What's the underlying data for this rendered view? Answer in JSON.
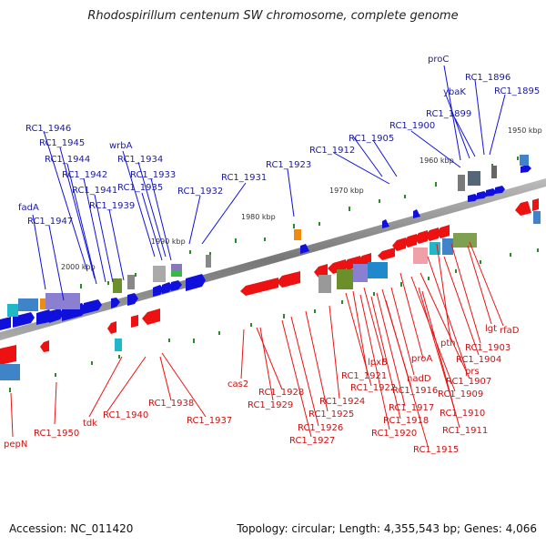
{
  "title": "Rhodospirillum centenum SW chromosome, complete genome",
  "footer": {
    "accession": "Accession: NC_011420",
    "summary": "Topology: circular; Length: 4,355,543 bp; Genes: 4,066"
  },
  "colors": {
    "forward": "#1010dd",
    "reverse": "#ee1111",
    "backbone": "#888888",
    "fwd_label": "#1a1aa6",
    "rev_label": "#cc1111",
    "tick": "#2a8a2a"
  },
  "scale_labels": [
    "1950 kbp",
    "1960 kbp",
    "1970 kbp",
    "1980 kbp",
    "1990 kbp",
    "2000 kbp"
  ],
  "forward_genes": [
    "proC",
    "RC1_1896",
    "ybaK",
    "RC1_1895",
    "RC1_1899",
    "RC1_1900",
    "RC1_1946",
    "RC1_1905",
    "RC1_1945",
    "RC1_1912",
    "wrbA",
    "RC1_1944",
    "RC1_1934",
    "RC1_1942",
    "RC1_1933",
    "RC1_1923",
    "RC1_1941",
    "RC1_1935",
    "RC1_1931",
    "RC1_1939",
    "RC1_1932",
    "fadA",
    "RC1_1947"
  ],
  "reverse_genes": [
    "rfaD",
    "lgt",
    "RC1_1903",
    "pth",
    "RC1_1904",
    "prs",
    "proA",
    "RC1_1907",
    "lpxB",
    "nadD",
    "RC1_1909",
    "RC1_1921",
    "RC1_1916",
    "RC1_1922",
    "RC1_1917",
    "cas2",
    "RC1_1910",
    "RC1_1928",
    "RC1_1918",
    "RC1_1924",
    "RC1_1938",
    "RC1_1929",
    "RC1_1925",
    "RC1_1940",
    "RC1_1937",
    "RC1_1911",
    "RC1_1920",
    "RC1_1926",
    "tdk",
    "RC1_1950",
    "RC1_1927",
    "RC1_1915",
    "pepN"
  ]
}
